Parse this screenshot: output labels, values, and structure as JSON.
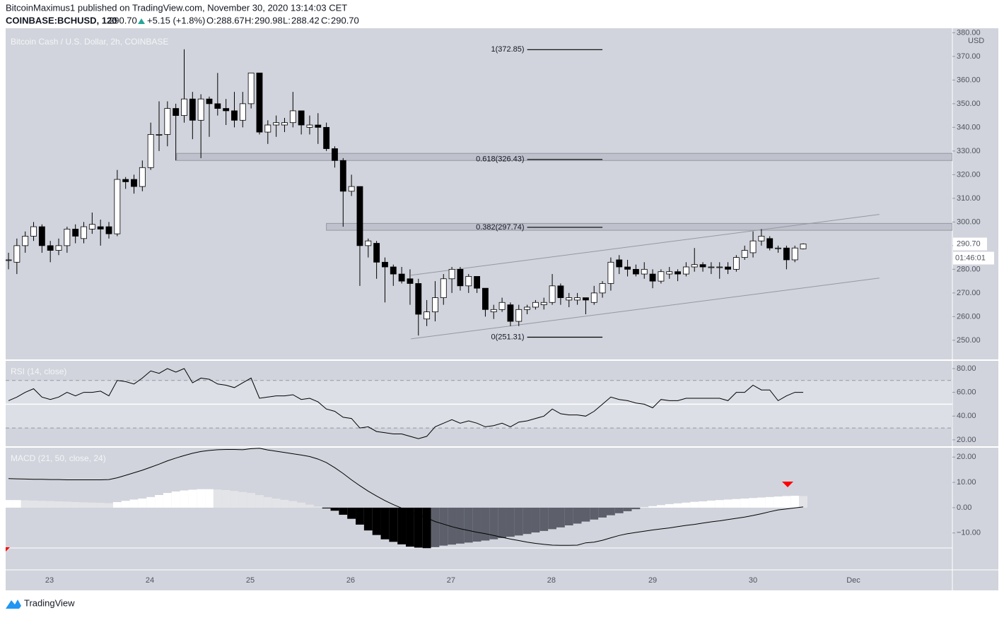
{
  "header": {
    "author_line": "BitcoinMaximus1 published on TradingView.com, November 30, 2020 13:14:03 CET",
    "symbol": "COINBASE:BCHUSD, 120",
    "last": "290.70",
    "change": "+5.15 (+1.8%)",
    "o_label": "O:",
    "o": "288.67",
    "h_label": "H:",
    "h": "290.98",
    "l_label": "L:",
    "l": "288.42",
    "c_label": "C:",
    "c": "290.70"
  },
  "footer": {
    "brand": "TradingView"
  },
  "chart_data": [
    {
      "type": "candlestick",
      "title": "Bitcoin Cash / U.S. Dollar, 2h, COINBASE",
      "currency": "USD",
      "up_color": "#ffffff",
      "down_color": "#000000",
      "wick_color": "#000000",
      "xlim": [
        -0.34,
        112.83
      ],
      "xticks": [
        {
          "value": 4.9,
          "label": "23"
        },
        {
          "value": 16.9,
          "label": "24"
        },
        {
          "value": 28.9,
          "label": "25"
        },
        {
          "value": 40.9,
          "label": "26"
        },
        {
          "value": 52.9,
          "label": "27"
        },
        {
          "value": 64.9,
          "label": "28"
        },
        {
          "value": 77.0,
          "label": "29"
        },
        {
          "value": 89.0,
          "label": "30"
        },
        {
          "value": 101.0,
          "label": "Dec"
        }
      ],
      "ylim": [
        242.2,
        381.9
      ],
      "yticks": [
        {
          "value": 250,
          "label": "250.00"
        },
        {
          "value": 260,
          "label": "260.00"
        },
        {
          "value": 270,
          "label": "270.00"
        },
        {
          "value": 280,
          "label": "280.00"
        },
        {
          "value": 290,
          "label": "290.00"
        },
        {
          "value": 300,
          "label": "300.00"
        },
        {
          "value": 310,
          "label": "310.00"
        },
        {
          "value": 320,
          "label": "320.00"
        },
        {
          "value": 330,
          "label": "330.00"
        },
        {
          "value": 340,
          "label": "340.00"
        },
        {
          "value": 350,
          "label": "350.00"
        },
        {
          "value": 360,
          "label": "360.00"
        },
        {
          "value": 370,
          "label": "370.00"
        },
        {
          "value": 380,
          "label": "380.00"
        }
      ],
      "grid": false,
      "open": [
        284,
        283,
        290,
        294,
        298,
        290,
        288,
        290,
        297,
        293,
        297,
        298,
        298,
        295,
        318,
        318,
        315,
        323,
        337,
        337,
        348,
        345,
        352,
        343,
        352,
        350,
        348,
        347,
        343,
        350,
        363,
        338,
        341,
        341,
        342,
        347,
        340,
        341,
        340,
        331,
        326,
        313,
        315,
        290,
        291,
        283,
        281,
        278,
        276,
        274,
        259,
        262,
        268,
        276,
        280,
        273,
        277,
        272,
        262,
        263,
        265,
        258,
        263,
        264,
        265,
        266,
        273,
        267,
        267,
        268,
        266,
        270,
        274,
        284,
        281,
        280,
        278,
        278,
        275,
        278,
        279,
        278,
        281,
        282,
        281,
        281,
        281,
        280,
        285,
        287,
        292,
        293,
        289,
        289,
        284,
        288.67
      ],
      "high": [
        287,
        293,
        296,
        300,
        299,
        292,
        293,
        298,
        299,
        300,
        304,
        301,
        300,
        322,
        319,
        320,
        326,
        342,
        351,
        351,
        350,
        373,
        355,
        354,
        353,
        363,
        352,
        355,
        355,
        363,
        363,
        343,
        345,
        344,
        355,
        347,
        345,
        346,
        342,
        332,
        327,
        320,
        315,
        293,
        292,
        285,
        282,
        281,
        280,
        276,
        267,
        275,
        278,
        281,
        281,
        278,
        277,
        272,
        265,
        268,
        266,
        265,
        265,
        267,
        268,
        278,
        274,
        270,
        270,
        268,
        273,
        275,
        285,
        286,
        284,
        282,
        283,
        280,
        280,
        281,
        280,
        283,
        289,
        283,
        283,
        283,
        283,
        286,
        290,
        296,
        297,
        294,
        290,
        290,
        290,
        290.98
      ],
      "low": [
        280,
        278,
        287,
        292,
        287,
        283,
        286,
        287,
        291,
        291,
        295,
        290,
        293,
        294,
        314,
        312,
        313,
        322,
        330,
        332,
        326,
        342,
        335,
        327,
        336,
        345,
        341,
        340,
        340,
        348,
        337,
        333,
        336,
        338,
        340,
        337,
        337,
        333,
        330,
        323,
        298,
        311,
        273,
        285,
        276,
        266,
        273,
        274,
        265,
        252,
        256,
        258,
        265,
        270,
        271,
        270,
        270,
        260,
        259,
        262,
        256,
        256,
        261,
        263,
        263,
        265,
        265,
        264,
        265,
        261,
        265,
        268,
        271,
        278,
        277,
        277,
        276,
        272,
        274,
        276,
        275,
        277,
        279,
        279,
        278,
        276,
        278,
        279,
        284,
        285,
        290,
        288,
        287,
        280,
        283,
        288.42
      ],
      "close": [
        284,
        290,
        294,
        298,
        290,
        288,
        290,
        297,
        294,
        298,
        299,
        297,
        295,
        318,
        317,
        315,
        323,
        337,
        337,
        348,
        345,
        352,
        343,
        352,
        350,
        348,
        347,
        343,
        350,
        363,
        338,
        341,
        342,
        342,
        347,
        341,
        341,
        340,
        331,
        326,
        313,
        315,
        290,
        292,
        283,
        281,
        278,
        275,
        274,
        261,
        262,
        268,
        276,
        280,
        273,
        277,
        272,
        263,
        263,
        266,
        258,
        263,
        264,
        266,
        266,
        273,
        268,
        268,
        268,
        267,
        270,
        274,
        283,
        281,
        280,
        278,
        280,
        275,
        279,
        279,
        278,
        281,
        282,
        281,
        281,
        281,
        280,
        285,
        288,
        292,
        294,
        289,
        289,
        284,
        289,
        290.7
      ],
      "last_price": {
        "value": 290.7,
        "label": "290.70"
      },
      "countdown": "01:46:01",
      "zone_color": "#b8bbc4",
      "zones": [
        {
          "x0": 20.1,
          "y": [
            326.0,
            329.0
          ]
        },
        {
          "x0": 38.0,
          "y": [
            296.5,
            299.4
          ]
        }
      ],
      "channel_color": "#9598a1",
      "channel": [
        {
          "x": [
            48.1,
            104.1
          ],
          "y": [
            277.5,
            303.2
          ]
        },
        {
          "x": [
            48.1,
            104.1
          ],
          "y": [
            250.6,
            276.3
          ]
        }
      ],
      "fib_x": [
        62.0,
        71.0
      ],
      "fib_levels": [
        {
          "value": 372.85,
          "label": "1(372.85)"
        },
        {
          "value": 326.43,
          "label": "0.618(326.43)"
        },
        {
          "value": 297.74,
          "label": "0.382(297.74)"
        },
        {
          "value": 251.31,
          "label": "0(251.31)"
        }
      ]
    },
    {
      "type": "line",
      "title": "RSI (14, close)",
      "color": "#000000",
      "ylim": [
        14.6,
        85.9
      ],
      "yticks": [
        {
          "value": 20,
          "label": "20.00"
        },
        {
          "value": 40,
          "label": "40.00"
        },
        {
          "value": 60,
          "label": "60.00"
        },
        {
          "value": 80,
          "label": "80.00"
        }
      ],
      "bands": [
        70,
        30
      ],
      "midline": 50,
      "values": [
        53,
        56,
        60,
        63,
        56,
        54,
        56,
        60,
        57,
        60,
        60,
        61,
        57,
        70,
        69,
        67,
        72,
        78,
        76,
        80,
        77,
        80,
        68,
        72,
        71,
        67,
        66,
        64,
        68,
        72,
        55,
        56,
        57,
        57,
        58,
        54,
        55,
        52,
        46,
        44,
        39,
        38,
        30,
        31,
        27,
        26,
        25,
        25,
        23,
        21,
        23,
        31,
        34,
        37,
        34,
        36,
        34,
        31,
        32,
        34,
        31,
        35,
        36,
        38,
        40,
        46,
        42,
        41,
        41,
        40,
        44,
        50,
        56,
        54,
        53,
        51,
        50,
        47,
        54,
        53,
        53,
        55,
        55,
        55,
        55,
        55,
        53,
        60,
        60,
        66,
        62,
        62,
        53,
        57,
        60,
        60
      ]
    },
    {
      "type": "macd",
      "title": "MACD (21, 50, close, 24)",
      "line_color": "#000000",
      "hist_colors": {
        "pos_up": "#ffffff",
        "pos_down": "#e3e4e8",
        "neg_down": "#000000",
        "neg_up": "#5d606b"
      },
      "ylim": [
        -24.3,
        23.7
      ],
      "yticks": [
        {
          "value": -10,
          "label": "−10.00"
        },
        {
          "value": 0,
          "label": "0.00"
        },
        {
          "value": 10,
          "label": "10.00"
        },
        {
          "value": 20,
          "label": "20.00"
        }
      ],
      "histogram": [
        3.0,
        3.0,
        2.9,
        2.8,
        2.7,
        2.6,
        2.5,
        2.4,
        2.2,
        2.1,
        2.0,
        1.9,
        1.8,
        2.2,
        2.7,
        3.2,
        3.6,
        4.2,
        5.0,
        5.8,
        6.4,
        6.8,
        7.1,
        7.3,
        7.3,
        7.2,
        7.0,
        6.6,
        6.2,
        5.8,
        5.0,
        4.2,
        3.6,
        3.1,
        2.6,
        2.0,
        1.2,
        0.5,
        -0.3,
        -1.2,
        -2.8,
        -4.4,
        -6.7,
        -9.0,
        -10.8,
        -12.5,
        -13.5,
        -14.5,
        -15.4,
        -15.8,
        -16.0,
        -15.6,
        -15.0,
        -14.6,
        -14.2,
        -13.8,
        -13.4,
        -13.0,
        -12.5,
        -12.0,
        -11.5,
        -11.0,
        -10.4,
        -9.8,
        -9.2,
        -8.5,
        -7.8,
        -7.0,
        -6.3,
        -5.5,
        -4.7,
        -3.9,
        -3.0,
        -2.2,
        -1.4,
        -0.6,
        0.2,
        0.6,
        1.0,
        1.4,
        1.7,
        2.0,
        2.3,
        2.5,
        2.8,
        3.0,
        3.2,
        3.4,
        3.6,
        3.8,
        4.0,
        4.2,
        4.4,
        4.6,
        4.7,
        4.6
      ],
      "macd": [
        11.5,
        11.4,
        11.3,
        11.2,
        11.2,
        11.1,
        11.1,
        11.0,
        11.0,
        11.0,
        11.0,
        11.0,
        11.1,
        11.8,
        12.8,
        13.8,
        14.8,
        16.0,
        17.2,
        18.5,
        19.6,
        20.6,
        21.5,
        22.2,
        22.6,
        22.9,
        23.0,
        23.0,
        22.9,
        23.3,
        23.5,
        22.8,
        22.3,
        21.8,
        21.3,
        20.8,
        20.2,
        19.2,
        17.8,
        15.8,
        13.5,
        11.0,
        8.7,
        6.5,
        4.6,
        2.8,
        1.2,
        -0.2,
        -1.5,
        -2.8,
        -4.0,
        -5.5,
        -6.5,
        -7.5,
        -8.3,
        -9.0,
        -9.7,
        -10.3,
        -11.0,
        -11.7,
        -12.4,
        -13.0,
        -13.6,
        -14.1,
        -14.5,
        -14.8,
        -14.9,
        -14.9,
        -14.8,
        -13.9,
        -13.6,
        -12.9,
        -11.9,
        -11.0,
        -10.3,
        -9.8,
        -9.3,
        -8.8,
        -8.4,
        -8.0,
        -7.5,
        -7.0,
        -6.6,
        -6.1,
        -5.6,
        -5.2,
        -4.7,
        -4.2,
        -3.7,
        -3.1,
        -2.4,
        -1.6,
        -0.9,
        -0.5,
        -0.1,
        0.3
      ]
    }
  ]
}
